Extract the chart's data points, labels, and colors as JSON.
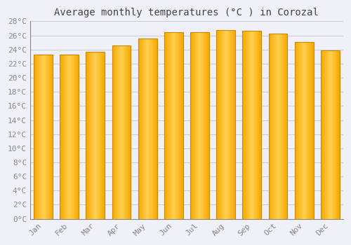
{
  "title": "Average monthly temperatures (°C ) in Corozal",
  "months": [
    "Jan",
    "Feb",
    "Mar",
    "Apr",
    "May",
    "Jun",
    "Jul",
    "Aug",
    "Sep",
    "Oct",
    "Nov",
    "Dec"
  ],
  "temperatures": [
    23.3,
    23.3,
    23.7,
    24.6,
    25.6,
    26.5,
    26.5,
    26.8,
    26.7,
    26.3,
    25.1,
    23.9
  ],
  "ylim": [
    0,
    28
  ],
  "yticks": [
    0,
    2,
    4,
    6,
    8,
    10,
    12,
    14,
    16,
    18,
    20,
    22,
    24,
    26,
    28
  ],
  "bar_color_center": "#FFD050",
  "bar_color_edge": "#F5A800",
  "bar_edge_color": "#CC8800",
  "background_color": "#F0F0F8",
  "plot_bg_color": "#F0F0F8",
  "grid_color": "#CCCCDD",
  "title_fontsize": 10,
  "axis_fontsize": 8,
  "tick_label_color": "#888888",
  "title_color": "#444444",
  "bar_width": 0.72
}
